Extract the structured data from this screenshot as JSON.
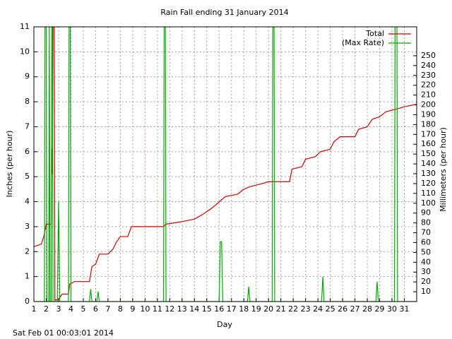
{
  "chart_data": {
    "type": "line",
    "title": "Rain Fall ending 31 January 2014",
    "x_label": "Day",
    "y_label": "Inches (per hour)",
    "y2_label": "Millimeters (per hour)",
    "footer": "Sat Feb 01 00:03:01 2014",
    "xlim": [
      1,
      32
    ],
    "ylim": [
      0,
      11
    ],
    "y2lim": [
      0,
      279.4
    ],
    "xticks": [
      1,
      2,
      3,
      4,
      5,
      6,
      7,
      8,
      9,
      10,
      11,
      12,
      13,
      14,
      15,
      16,
      17,
      18,
      19,
      20,
      21,
      22,
      23,
      24,
      25,
      26,
      27,
      28,
      29,
      30,
      31
    ],
    "yticks": [
      0,
      1,
      2,
      3,
      4,
      5,
      6,
      7,
      8,
      9,
      10,
      11
    ],
    "y2ticks": [
      10,
      20,
      30,
      40,
      50,
      60,
      70,
      80,
      90,
      100,
      110,
      120,
      130,
      140,
      150,
      160,
      170,
      180,
      190,
      200,
      210,
      220,
      230,
      240,
      250
    ],
    "grid": true,
    "legend": "top right",
    "series": [
      {
        "name": "Total",
        "color": "#cc0000",
        "x": [
          1,
          1.6,
          1.8,
          2.0,
          2.4,
          2.45,
          2.5,
          2.55,
          2.65,
          2.7,
          3.0,
          3.3,
          3.8,
          3.9,
          4.3,
          5.5,
          5.7,
          6.0,
          6.3,
          7.0,
          7.4,
          7.7,
          8.0,
          8.6,
          8.9,
          11.5,
          11.7,
          13,
          14,
          14.7,
          15.3,
          15.8,
          16.5,
          17.5,
          18,
          18.5,
          19.3,
          20,
          21.7,
          21.9,
          22.7,
          23,
          23.8,
          24.2,
          25,
          25.3,
          25.8,
          27,
          27.3,
          28,
          28.4,
          29,
          29.5,
          30.3,
          31,
          32
        ],
        "values": [
          2.2,
          2.3,
          2.6,
          3.1,
          3.1,
          6.1,
          5.1,
          11,
          11,
          0.05,
          0.1,
          0.3,
          0.3,
          0.7,
          0.8,
          0.8,
          1.4,
          1.5,
          1.9,
          1.9,
          2.1,
          2.4,
          2.6,
          2.6,
          3.0,
          3.0,
          3.1,
          3.2,
          3.3,
          3.5,
          3.7,
          3.9,
          4.2,
          4.3,
          4.5,
          4.6,
          4.7,
          4.8,
          4.8,
          5.3,
          5.4,
          5.7,
          5.8,
          6.0,
          6.1,
          6.4,
          6.6,
          6.6,
          6.9,
          7.0,
          7.3,
          7.4,
          7.6,
          7.7,
          7.8,
          7.9
        ]
      },
      {
        "name": "(Max Rate)",
        "color": "#00aa00",
        "x": [
          1,
          1.85,
          1.9,
          2.0,
          2.05,
          2.2,
          2.25,
          2.3,
          2.4,
          2.45,
          2.5,
          2.55,
          2.9,
          3.0,
          3.1,
          3.8,
          3.85,
          3.95,
          4.0,
          5.5,
          5.6,
          5.7,
          6.1,
          6.2,
          6.3,
          11.5,
          11.55,
          11.65,
          11.7,
          16.0,
          16.1,
          16.2,
          16.3,
          18.3,
          18.4,
          18.5,
          20.3,
          20.35,
          20.45,
          20.5,
          24.3,
          24.4,
          24.5,
          28.7,
          28.8,
          28.9,
          30.2,
          30.25,
          30.4,
          30.45,
          32
        ],
        "values": [
          0,
          0,
          11,
          11,
          0,
          0,
          11,
          0,
          0,
          11,
          11,
          0,
          0,
          4,
          0,
          0,
          11,
          11,
          0,
          0,
          0.5,
          0,
          0,
          0.4,
          0,
          0,
          11,
          11,
          0,
          0,
          2.4,
          2.4,
          0,
          0,
          0.6,
          0,
          0,
          11,
          11,
          0,
          0,
          1.0,
          0,
          0,
          0.8,
          0,
          0,
          11,
          11,
          0,
          0
        ]
      }
    ]
  }
}
